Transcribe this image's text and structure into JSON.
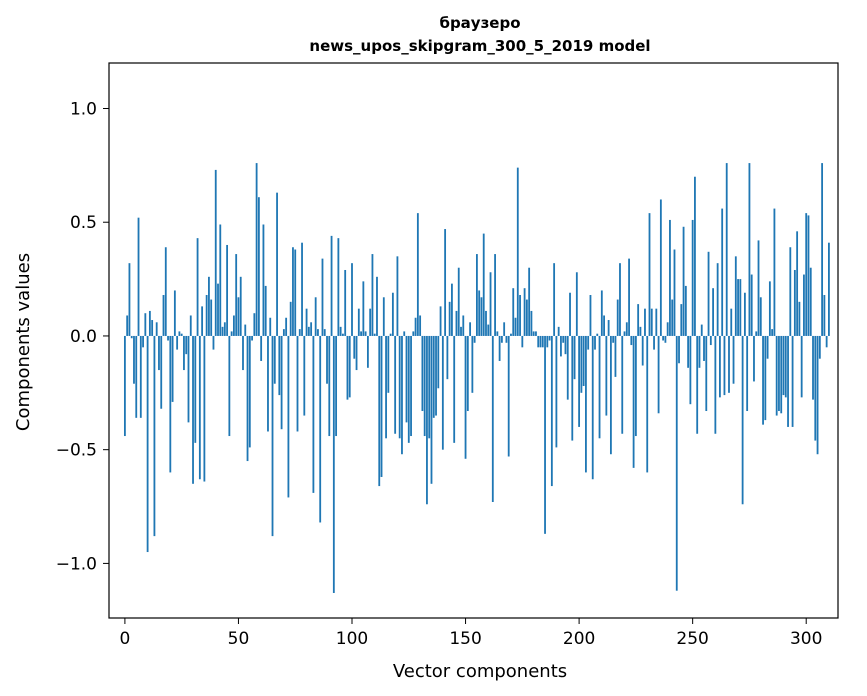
{
  "chart_data": {
    "type": "bar",
    "title": "браузеро",
    "subtitle": "news_upos_skipgram_300_5_2019 model",
    "xlabel": "Vector components",
    "ylabel": "Components values",
    "xlim": [
      -7,
      314
    ],
    "ylim": [
      -1.24,
      1.2
    ],
    "x_ticks": [
      0,
      50,
      100,
      150,
      200,
      250,
      300
    ],
    "x_tick_labels": [
      "0",
      "50",
      "100",
      "150",
      "200",
      "250",
      "300"
    ],
    "y_ticks": [
      -1.0,
      -0.5,
      0.0,
      0.5,
      1.0
    ],
    "y_tick_labels": [
      "−1.0",
      "−0.5",
      "0.0",
      "0.5",
      "1.0"
    ],
    "bar_color": "#1f77b4",
    "grid": false,
    "series": [
      {
        "values": [
          -0.44,
          0.09,
          0.32,
          -0.01,
          -0.21,
          -0.36,
          0.52,
          -0.36,
          -0.05,
          0.1,
          -0.95,
          0.11,
          0.07,
          -0.88,
          0.06,
          -0.15,
          -0.32,
          0.18,
          0.39,
          -0.02,
          -0.6,
          -0.29,
          0.2,
          -0.06,
          0.02,
          0.01,
          -0.15,
          -0.08,
          -0.38,
          0.09,
          -0.65,
          -0.47,
          0.43,
          -0.63,
          0.13,
          -0.64,
          0.18,
          0.26,
          0.16,
          -0.06,
          0.73,
          0.23,
          0.49,
          0.04,
          0.06,
          0.4,
          -0.44,
          0.02,
          0.09,
          0.36,
          0.17,
          0.26,
          -0.15,
          0.05,
          -0.55,
          -0.49,
          -0.02,
          0.1,
          0.76,
          0.61,
          -0.11,
          0.49,
          0.22,
          -0.42,
          0.08,
          -0.88,
          -0.21,
          0.63,
          -0.26,
          -0.41,
          0.03,
          0.08,
          -0.71,
          0.15,
          0.39,
          0.38,
          -0.42,
          0.03,
          0.41,
          -0.35,
          0.12,
          0.04,
          0.06,
          -0.69,
          0.17,
          0.03,
          -0.82,
          0.34,
          0.03,
          -0.21,
          -0.44,
          0.44,
          -1.13,
          -0.44,
          0.43,
          0.04,
          0.01,
          0.29,
          -0.28,
          -0.27,
          0.32,
          -0.1,
          -0.15,
          0.12,
          0.02,
          0.24,
          0.02,
          -0.14,
          0.12,
          0.36,
          0.01,
          0.26,
          -0.66,
          -0.62,
          0.17,
          -0.45,
          -0.25,
          0.01,
          0.19,
          -0.43,
          0.35,
          -0.45,
          -0.52,
          0.02,
          -0.38,
          -0.47,
          -0.44,
          0.02,
          0.08,
          0.54,
          0.09,
          -0.33,
          -0.44,
          -0.74,
          -0.45,
          -0.65,
          -0.36,
          -0.35,
          -0.23,
          0.13,
          -0.5,
          0.47,
          -0.19,
          0.15,
          0.23,
          -0.47,
          0.11,
          0.3,
          0.04,
          0.09,
          -0.54,
          -0.33,
          0.06,
          -0.25,
          -0.03,
          0.36,
          0.2,
          0.17,
          0.45,
          0.11,
          0.05,
          0.28,
          -0.73,
          0.36,
          0.02,
          -0.11,
          -0.03,
          0.06,
          -0.03,
          -0.53,
          0.01,
          0.21,
          0.08,
          0.74,
          0.18,
          -0.05,
          0.21,
          0.16,
          0.3,
          0.11,
          0.02,
          0.02,
          -0.05,
          -0.05,
          -0.05,
          -0.87,
          -0.05,
          -0.02,
          -0.66,
          0.32,
          -0.49,
          0.04,
          -0.09,
          -0.03,
          -0.08,
          -0.28,
          0.19,
          -0.46,
          -0.19,
          0.28,
          -0.4,
          -0.25,
          -0.22,
          -0.6,
          -0.06,
          0.18,
          -0.63,
          -0.06,
          0.01,
          -0.45,
          0.2,
          0.09,
          -0.35,
          0.07,
          -0.52,
          -0.03,
          -0.18,
          0.16,
          0.32,
          -0.43,
          0.02,
          0.06,
          0.34,
          -0.04,
          -0.58,
          -0.44,
          0.14,
          0.04,
          -0.13,
          0.12,
          -0.6,
          0.54,
          0.12,
          -0.06,
          0.12,
          -0.34,
          0.6,
          -0.02,
          -0.03,
          0.06,
          0.51,
          0.16,
          0.38,
          -1.12,
          -0.12,
          0.14,
          0.48,
          0.22,
          -0.14,
          -0.3,
          0.51,
          0.7,
          -0.43,
          -0.14,
          0.05,
          -0.11,
          -0.33,
          0.37,
          -0.04,
          0.21,
          -0.43,
          0.32,
          -0.27,
          0.56,
          -0.26,
          0.76,
          -0.25,
          0.12,
          -0.21,
          0.35,
          0.25,
          0.25,
          -0.74,
          0.19,
          -0.33,
          0.76,
          0.27,
          -0.2,
          0.02,
          0.42,
          0.17,
          -0.39,
          -0.37,
          -0.1,
          0.24,
          0.03,
          0.56,
          -0.35,
          -0.33,
          -0.34,
          -0.26,
          -0.27,
          -0.4,
          0.39,
          -0.4,
          0.29,
          0.46,
          0.15,
          -0.27,
          0.27,
          0.54,
          0.53,
          0.3,
          -0.28,
          -0.46,
          -0.52,
          -0.1,
          0.76,
          0.18,
          -0.05,
          0.41
        ]
      }
    ]
  }
}
